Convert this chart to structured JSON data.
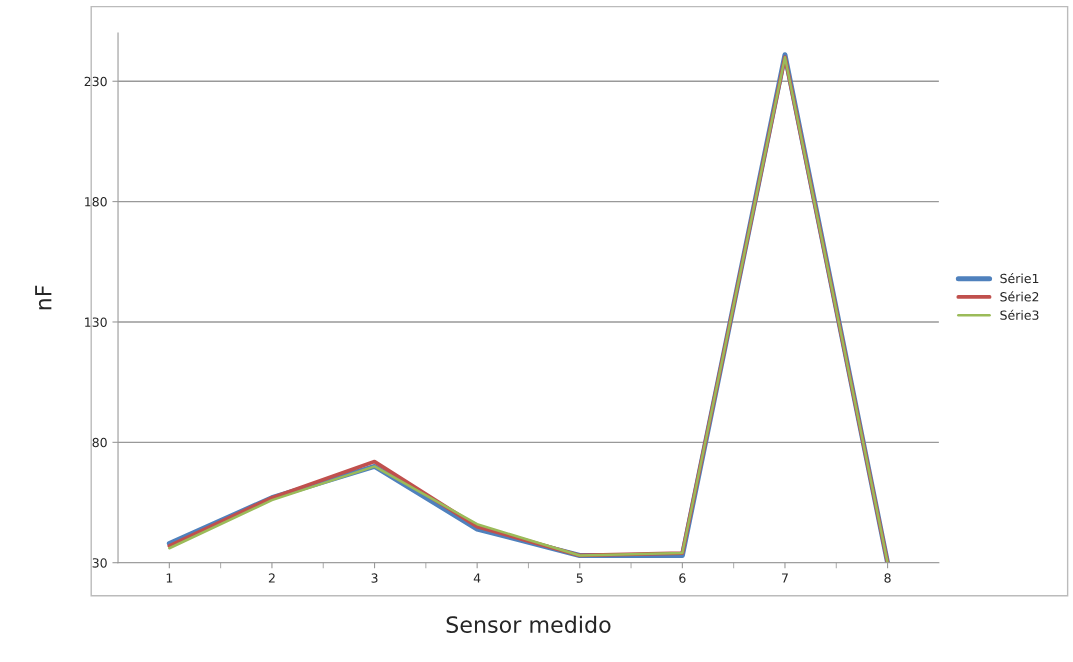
{
  "chart_data": {
    "type": "line",
    "xlabel": "Sensor medido",
    "ylabel": "nF",
    "categories": [
      "1",
      "2",
      "3",
      "4",
      "5",
      "6",
      "7",
      "8"
    ],
    "series": [
      {
        "name": "Série1",
        "color": "#4f81bd",
        "values": [
          38,
          57,
          70,
          44,
          33,
          33,
          241,
          30
        ]
      },
      {
        "name": "Série2",
        "color": "#c0504d",
        "values": [
          37,
          57,
          72,
          45,
          33,
          34,
          240,
          30
        ]
      },
      {
        "name": "Série3",
        "color": "#9bbb59",
        "values": [
          36,
          56,
          70,
          46,
          33,
          34,
          240,
          30
        ]
      }
    ],
    "ylim": [
      30,
      250
    ],
    "yticks": [
      30,
      80,
      130,
      180,
      230
    ],
    "grid": "y",
    "legend": "right",
    "marker": "none",
    "line_style": "solid"
  }
}
